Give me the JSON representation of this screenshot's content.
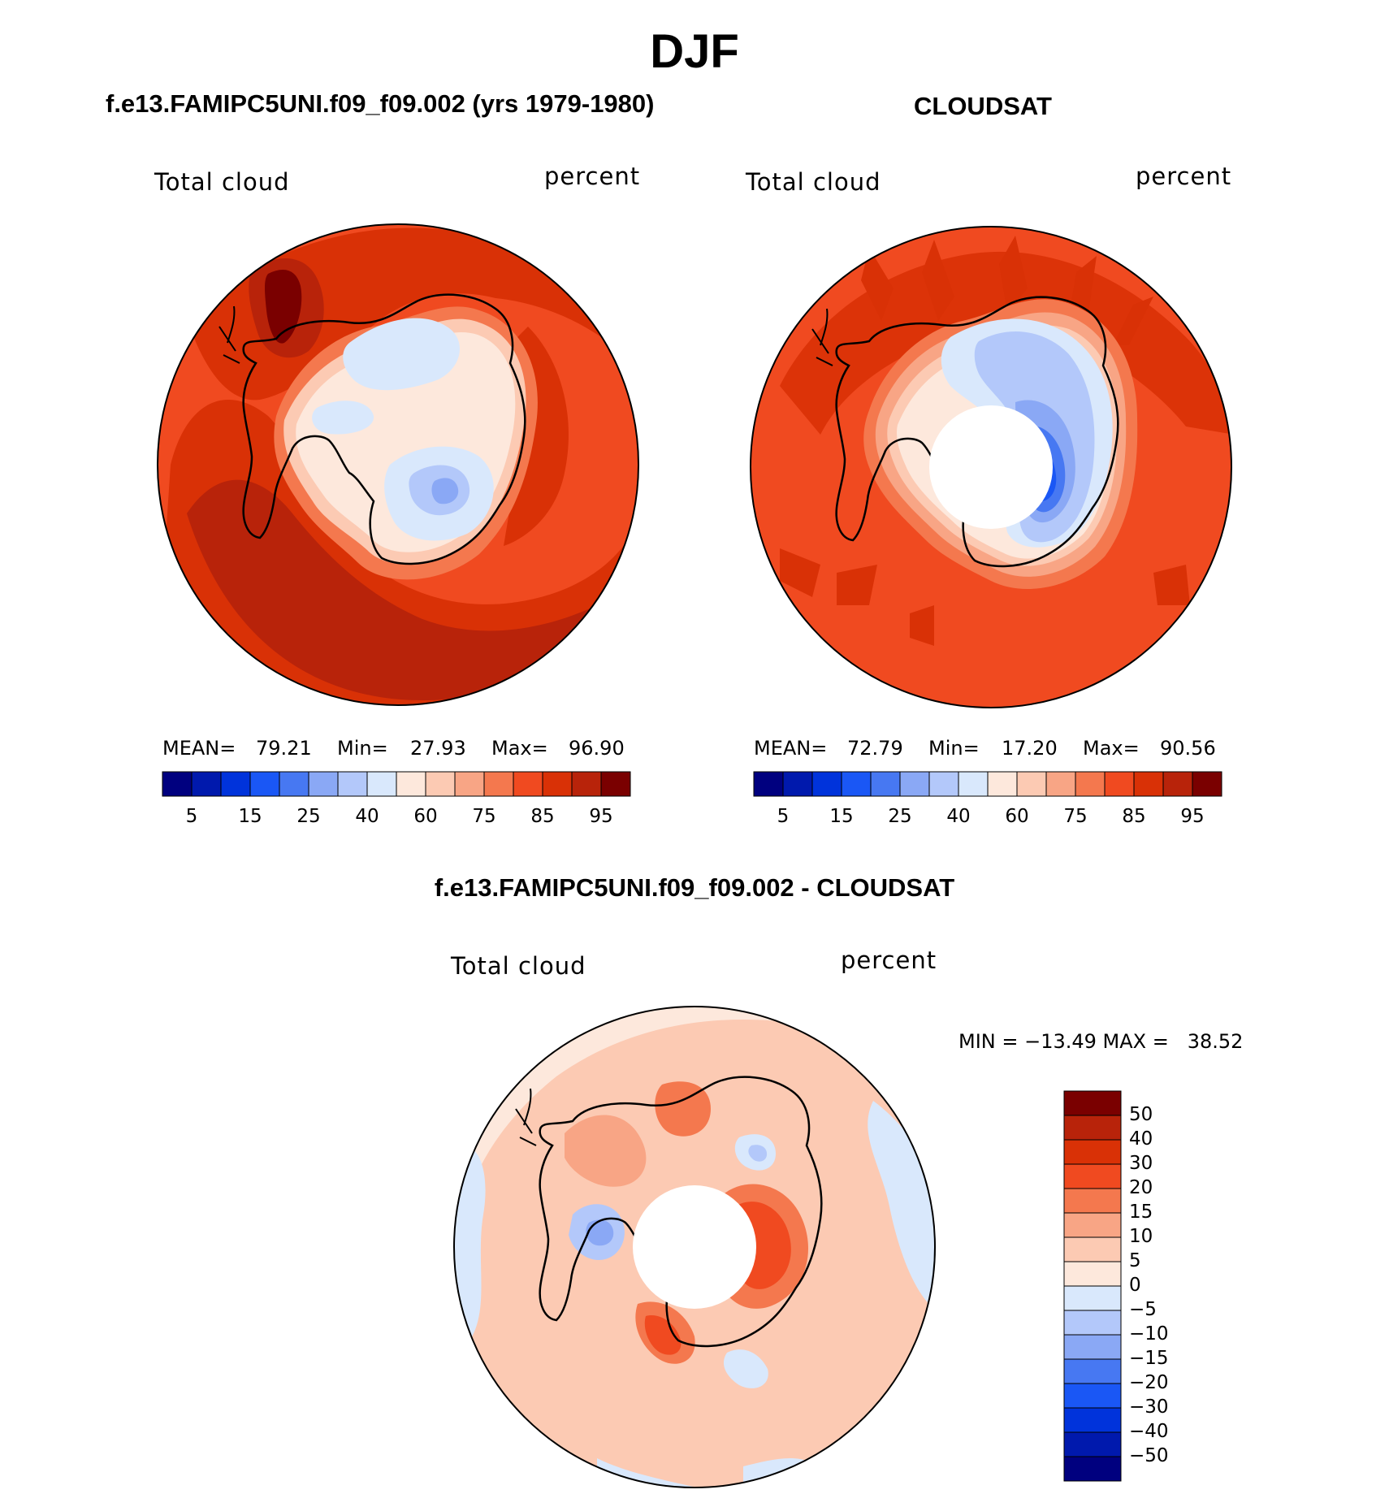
{
  "page": {
    "main_title": "DJF"
  },
  "colors": {
    "abs_scale": [
      "#00007f",
      "#0019ad",
      "#0033db",
      "#1a57f5",
      "#4778f2",
      "#8aa8f5",
      "#b3c8fa",
      "#d9e8fc",
      "#fde8dc",
      "#fccab3",
      "#f8a585",
      "#f4784e",
      "#f04a20",
      "#d93106",
      "#b8230a",
      "#7a0000"
    ],
    "diff_scale": [
      "#7a0000",
      "#b8230a",
      "#d93106",
      "#f04a20",
      "#f4784e",
      "#f8a585",
      "#fccab3",
      "#fde8dc",
      "#d9e8fc",
      "#b3c8fa",
      "#8aa8f5",
      "#4778f2",
      "#1a57f5",
      "#0033db",
      "#0019ad",
      "#00007f"
    ]
  },
  "chart_data": [
    {
      "type": "heatmap",
      "projection": "south-polar-stereographic",
      "title": "f.e13.FAMIPC5UNI.f09_f09.002 (yrs 1979-1980)",
      "left_label": "Total cloud",
      "right_label": "percent",
      "stats": {
        "mean_label": "MEAN=",
        "mean": "79.21",
        "min_label": "Min=",
        "min": "27.93",
        "max_label": "Max=",
        "max": "96.90"
      },
      "colorbar": {
        "levels": [
          5,
          10,
          15,
          20,
          25,
          30,
          40,
          50,
          60,
          70,
          75,
          80,
          85,
          90,
          95
        ],
        "tick_labels": [
          "5",
          "15",
          "25",
          "40",
          "60",
          "75",
          "85",
          "95"
        ]
      }
    },
    {
      "type": "heatmap",
      "projection": "south-polar-stereographic",
      "title": "CLOUDSAT",
      "left_label": "Total cloud",
      "right_label": "percent",
      "stats": {
        "mean_label": "MEAN=",
        "mean": "72.79",
        "min_label": "Min=",
        "min": "17.20",
        "max_label": "Max=",
        "max": "90.56"
      },
      "colorbar": {
        "levels": [
          5,
          10,
          15,
          20,
          25,
          30,
          40,
          50,
          60,
          70,
          75,
          80,
          85,
          90,
          95
        ],
        "tick_labels": [
          "5",
          "15",
          "25",
          "40",
          "60",
          "75",
          "85",
          "95"
        ]
      }
    },
    {
      "type": "heatmap",
      "projection": "south-polar-stereographic",
      "title": "f.e13.FAMIPC5UNI.f09_f09.002 - CLOUDSAT",
      "left_label": "Total cloud",
      "right_label": "percent",
      "stats_text": "MIN = −13.49 MAX =   38.52",
      "colorbar": {
        "orientation": "vertical",
        "levels": [
          50,
          40,
          30,
          20,
          15,
          10,
          5,
          0,
          -5,
          -10,
          -15,
          -20,
          -30,
          -40,
          -50
        ],
        "tick_labels": [
          "50",
          "40",
          "30",
          "20",
          "15",
          "10",
          "5",
          "0",
          "−5",
          "−10",
          "−15",
          "−20",
          "−30",
          "−40",
          "−50"
        ]
      }
    }
  ]
}
